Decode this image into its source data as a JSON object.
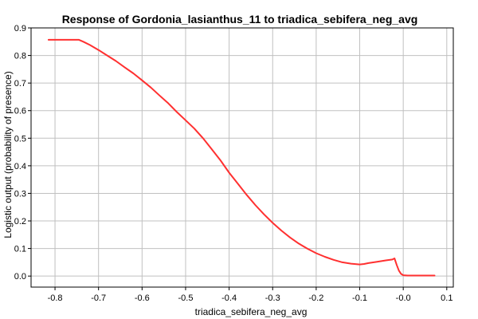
{
  "chart_data": {
    "type": "line",
    "title": "Response of Gordonia_lasianthus_11 to triadica_sebifera_neg_avg",
    "xlabel": "triadica_sebifera_neg_avg",
    "ylabel": "Logistic output (probability of presence)",
    "xlim": [
      -0.855,
      0.115
    ],
    "ylim": [
      -0.04,
      0.9
    ],
    "xticks": [
      -0.8,
      -0.7,
      -0.6,
      -0.5,
      -0.4,
      -0.3,
      -0.2,
      -0.1,
      -0.0,
      0.1
    ],
    "xtick_labels": [
      "-0.8",
      "-0.7",
      "-0.6",
      "-0.5",
      "-0.4",
      "-0.3",
      "-0.2",
      "-0.1",
      "-0.0",
      "0.1"
    ],
    "yticks": [
      0.0,
      0.1,
      0.2,
      0.3,
      0.4,
      0.5,
      0.6,
      0.7,
      0.8,
      0.9
    ],
    "ytick_labels": [
      "0.0",
      "0.1",
      "0.2",
      "0.3",
      "0.4",
      "0.5",
      "0.6",
      "0.7",
      "0.8",
      "0.9"
    ],
    "grid": true,
    "line_color": "#ff3030",
    "series": [
      {
        "x": [
          -0.815,
          -0.79,
          -0.77,
          -0.745,
          -0.735,
          -0.72,
          -0.7,
          -0.68,
          -0.66,
          -0.64,
          -0.62,
          -0.6,
          -0.58,
          -0.56,
          -0.54,
          -0.52,
          -0.5,
          -0.48,
          -0.46,
          -0.44,
          -0.42,
          -0.4,
          -0.38,
          -0.36,
          -0.34,
          -0.32,
          -0.3,
          -0.28,
          -0.26,
          -0.24,
          -0.22,
          -0.2,
          -0.18,
          -0.16,
          -0.14,
          -0.12,
          -0.1,
          -0.09,
          -0.08,
          -0.06,
          -0.04,
          -0.025,
          -0.02,
          -0.015,
          -0.01,
          -0.005,
          0.0,
          0.01,
          0.04,
          0.072
        ],
        "y": [
          0.857,
          0.857,
          0.857,
          0.857,
          0.85,
          0.838,
          0.82,
          0.8,
          0.78,
          0.757,
          0.735,
          0.71,
          0.684,
          0.655,
          0.627,
          0.595,
          0.565,
          0.535,
          0.5,
          0.46,
          0.42,
          0.375,
          0.335,
          0.295,
          0.258,
          0.224,
          0.193,
          0.165,
          0.14,
          0.118,
          0.099,
          0.083,
          0.07,
          0.059,
          0.05,
          0.045,
          0.042,
          0.044,
          0.047,
          0.052,
          0.057,
          0.06,
          0.064,
          0.04,
          0.02,
          0.008,
          0.003,
          0.002,
          0.002,
          0.002
        ]
      }
    ]
  }
}
